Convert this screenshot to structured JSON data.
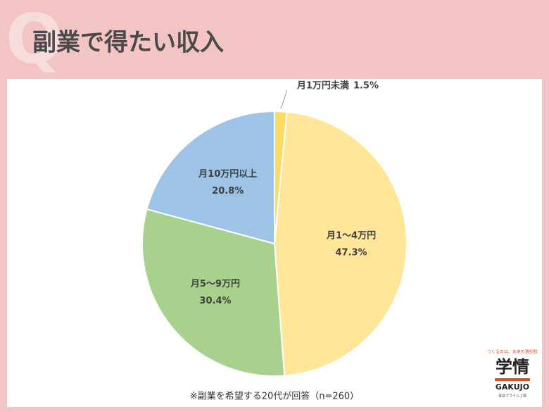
{
  "badge": "Q",
  "chart_data": {
    "type": "pie",
    "title": "副業で得たい収入",
    "categories": [
      "月1万円未満",
      "月1～4万円",
      "月5～9万円",
      "月10万円以上"
    ],
    "values": [
      1.5,
      47.3,
      30.4,
      20.8
    ],
    "value_labels": [
      "1.5%",
      "47.3%",
      "30.4%",
      "20.8%"
    ],
    "colors": [
      "#ffd966",
      "#ffe699",
      "#a9d18e",
      "#9dc3e6"
    ]
  },
  "footnote": "※副業を希望する20代が回答（n=260）",
  "logo": {
    "tagline": "つくるのは、未来の選択肢",
    "name": "学情",
    "roman": "GAKUJO",
    "listing": "東証プライム上場"
  }
}
